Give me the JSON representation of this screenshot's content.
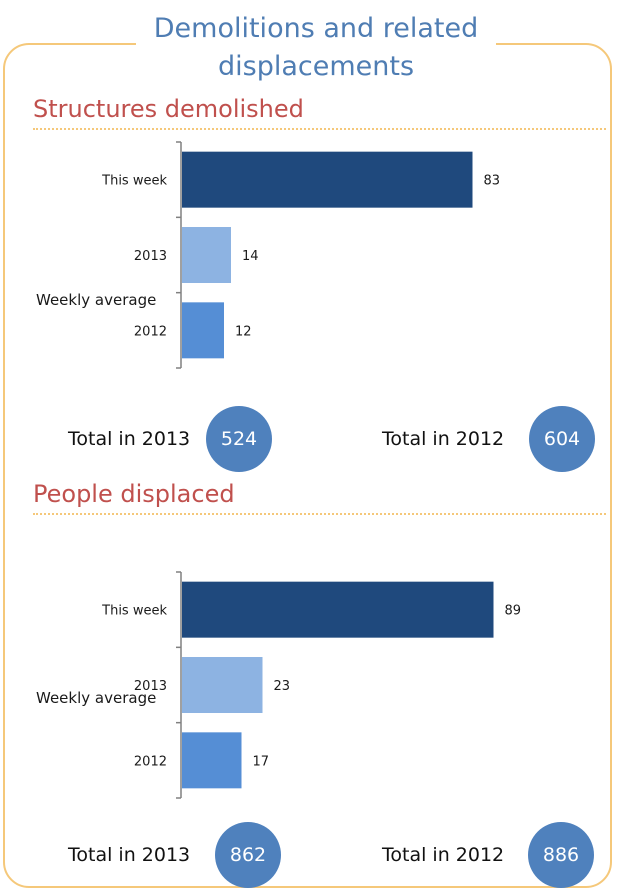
{
  "title": "Demolitions and related displacements",
  "colors": {
    "frame": "#f5c87a",
    "title": "#4f7db3",
    "section_title": "#c0504d",
    "this_week": "#1f497d",
    "y2013": "#8db3e2",
    "y2012": "#558ed5",
    "circle": "#4f81bd"
  },
  "weekly_average_label": "Weekly average",
  "sections": [
    {
      "title": "Structures demolished",
      "totals": [
        {
          "label": "Total in 2013",
          "value": "524"
        },
        {
          "label": "Total in 2012",
          "value": "604"
        }
      ]
    },
    {
      "title": "People displaced",
      "totals": [
        {
          "label": "Total in 2013",
          "value": "862"
        },
        {
          "label": "Total in 2012",
          "value": "886"
        }
      ]
    }
  ],
  "chart_data": [
    {
      "type": "bar",
      "orientation": "horizontal",
      "title": "Structures demolished",
      "categories": [
        "This week",
        "2013",
        "2012"
      ],
      "values": [
        83,
        14,
        12
      ],
      "xlim": [
        0,
        100
      ],
      "grid": false,
      "legend": "none"
    },
    {
      "type": "bar",
      "orientation": "horizontal",
      "title": "People displaced",
      "categories": [
        "This week",
        "2013",
        "2012"
      ],
      "values": [
        89,
        23,
        17
      ],
      "xlim": [
        0,
        100
      ],
      "grid": false,
      "legend": "none"
    }
  ]
}
